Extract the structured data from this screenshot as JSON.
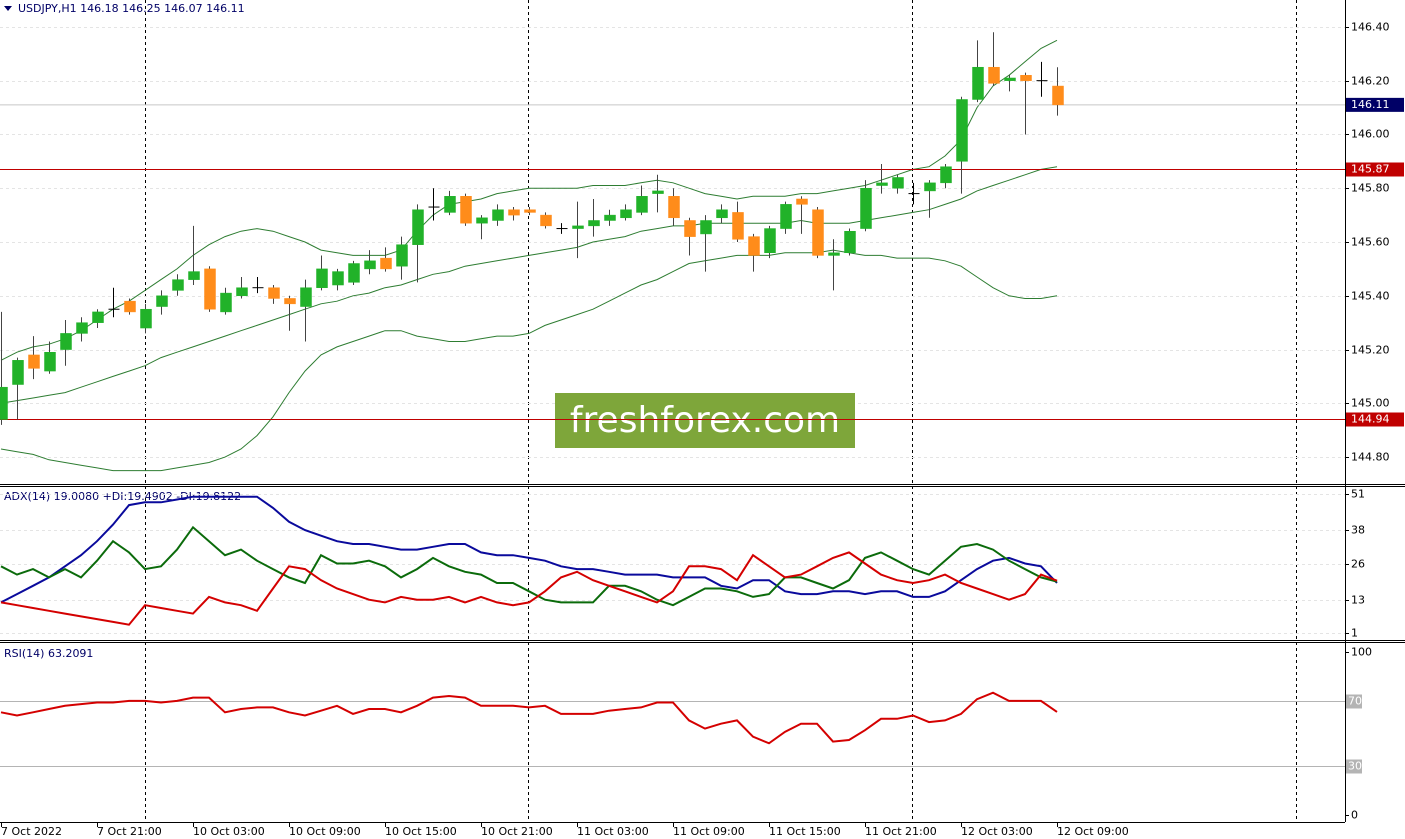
{
  "chart_data": [
    {
      "type": "candlestick",
      "title": "USDJPY,H1  146.18 146.25 146.07 146.11",
      "categories": [
        "7 Oct 2022",
        null,
        null,
        null,
        null,
        null,
        "7 Oct 21:00",
        null,
        null,
        null,
        null,
        null,
        "10 Oct 03:00",
        null,
        null,
        null,
        null,
        null,
        "10 Oct 09:00",
        null,
        null,
        null,
        null,
        null,
        "10 Oct 15:00",
        null,
        null,
        null,
        null,
        null,
        "10 Oct 21:00",
        null,
        null,
        null,
        null,
        null,
        "11 Oct 03:00",
        null,
        null,
        null,
        null,
        null,
        "11 Oct 09:00",
        null,
        null,
        null,
        null,
        null,
        "11 Oct 15:00",
        null,
        null,
        null,
        null,
        null,
        "11 Oct 21:00",
        null,
        null,
        null,
        null,
        null,
        "12 Oct 03:00",
        null,
        null,
        null,
        null,
        null,
        "12 Oct 09:00"
      ],
      "open": [
        144.94,
        145.07,
        145.18,
        145.12,
        145.2,
        145.26,
        145.3,
        145.35,
        145.38,
        145.28,
        145.36,
        145.42,
        145.46,
        145.5,
        145.34,
        145.4,
        145.43,
        145.43,
        145.39,
        145.36,
        145.43,
        145.44,
        145.45,
        145.5,
        145.54,
        145.51,
        145.59,
        145.73,
        145.71,
        145.77,
        145.67,
        145.68,
        145.72,
        145.72,
        145.7,
        145.65,
        145.65,
        145.66,
        145.68,
        145.69,
        145.71,
        145.78,
        145.77,
        145.68,
        145.63,
        145.69,
        145.71,
        145.62,
        145.56,
        145.65,
        145.76,
        145.72,
        145.55,
        145.56,
        145.65,
        145.81,
        145.8,
        145.78,
        145.79,
        145.82,
        145.9,
        146.13,
        146.25,
        146.2,
        146.22,
        146.2,
        146.18
      ],
      "high": [
        145.34,
        145.17,
        145.25,
        145.23,
        145.31,
        145.32,
        145.35,
        145.43,
        145.39,
        145.37,
        145.42,
        145.48,
        145.66,
        145.51,
        145.43,
        145.47,
        145.47,
        145.44,
        145.4,
        145.46,
        145.55,
        145.5,
        145.53,
        145.57,
        145.58,
        145.62,
        145.74,
        145.8,
        145.79,
        145.78,
        145.7,
        145.74,
        145.73,
        145.73,
        145.71,
        145.67,
        145.75,
        145.76,
        145.72,
        145.74,
        145.81,
        145.85,
        145.8,
        145.69,
        145.7,
        145.74,
        145.75,
        145.63,
        145.66,
        145.75,
        145.77,
        145.73,
        145.61,
        145.65,
        145.83,
        145.89,
        145.85,
        145.82,
        145.83,
        145.89,
        146.14,
        146.35,
        146.38,
        146.22,
        146.23,
        146.27,
        146.25
      ],
      "low": [
        144.92,
        144.94,
        145.09,
        145.11,
        145.14,
        145.23,
        145.28,
        145.32,
        145.33,
        145.26,
        145.33,
        145.4,
        145.44,
        145.34,
        145.33,
        145.39,
        145.41,
        145.37,
        145.27,
        145.23,
        145.42,
        145.42,
        145.44,
        145.48,
        145.49,
        145.46,
        145.45,
        145.68,
        145.7,
        145.66,
        145.61,
        145.66,
        145.68,
        145.7,
        145.65,
        145.63,
        145.54,
        145.62,
        145.66,
        145.68,
        145.7,
        145.71,
        145.66,
        145.55,
        145.49,
        145.67,
        145.6,
        145.49,
        145.54,
        145.63,
        145.63,
        145.54,
        145.42,
        145.55,
        145.64,
        145.78,
        145.78,
        145.74,
        145.69,
        145.8,
        145.78,
        146.12,
        146.18,
        146.16,
        146.0,
        146.14,
        146.07
      ],
      "close": [
        145.06,
        145.16,
        145.13,
        145.19,
        145.26,
        145.3,
        145.34,
        145.35,
        145.34,
        145.35,
        145.4,
        145.46,
        145.49,
        145.35,
        145.41,
        145.43,
        145.43,
        145.39,
        145.37,
        145.43,
        145.5,
        145.49,
        145.52,
        145.53,
        145.5,
        145.59,
        145.72,
        145.73,
        145.77,
        145.67,
        145.69,
        145.72,
        145.7,
        145.71,
        145.66,
        145.65,
        145.66,
        145.68,
        145.7,
        145.72,
        145.77,
        145.79,
        145.69,
        145.62,
        145.68,
        145.72,
        145.61,
        145.55,
        145.65,
        145.74,
        145.74,
        145.55,
        145.56,
        145.64,
        145.8,
        145.82,
        145.84,
        145.78,
        145.82,
        145.88,
        146.13,
        146.25,
        146.19,
        146.21,
        146.2,
        146.2,
        146.11
      ],
      "up_color": "#21b229",
      "down_color": "#ff8c1a",
      "doji_color": "#000000",
      "bands": [
        {
          "color": "#2e7d32",
          "values": [
            145.16,
            145.19,
            145.21,
            145.22,
            145.24,
            145.27,
            145.31,
            145.35,
            145.38,
            145.42,
            145.46,
            145.5,
            145.55,
            145.59,
            145.62,
            145.64,
            145.65,
            145.64,
            145.62,
            145.6,
            145.57,
            145.56,
            145.55,
            145.55,
            145.55,
            145.57,
            145.64,
            145.7,
            145.74,
            145.75,
            145.76,
            145.78,
            145.79,
            145.8,
            145.8,
            145.8,
            145.8,
            145.81,
            145.81,
            145.81,
            145.82,
            145.83,
            145.82,
            145.8,
            145.78,
            145.77,
            145.76,
            145.77,
            145.77,
            145.77,
            145.78,
            145.78,
            145.79,
            145.8,
            145.81,
            145.83,
            145.85,
            145.87,
            145.88,
            145.92,
            145.98,
            146.1,
            146.18,
            146.22,
            146.27,
            146.32,
            146.35
          ]
        },
        {
          "color": "#2e7d32",
          "values": [
            145.0,
            145.01,
            145.02,
            145.03,
            145.04,
            145.06,
            145.08,
            145.1,
            145.12,
            145.14,
            145.17,
            145.19,
            145.21,
            145.23,
            145.25,
            145.27,
            145.29,
            145.31,
            145.33,
            145.35,
            145.37,
            145.38,
            145.4,
            145.41,
            145.43,
            145.44,
            145.46,
            145.48,
            145.49,
            145.51,
            145.52,
            145.53,
            145.54,
            145.55,
            145.56,
            145.57,
            145.58,
            145.6,
            145.61,
            145.62,
            145.64,
            145.65,
            145.66,
            145.66,
            145.67,
            145.67,
            145.67,
            145.67,
            145.67,
            145.67,
            145.68,
            145.67,
            145.67,
            145.67,
            145.68,
            145.69,
            145.7,
            145.71,
            145.72,
            145.74,
            145.76,
            145.79,
            145.81,
            145.83,
            145.85,
            145.87,
            145.88
          ]
        },
        {
          "color": "#2e7d32",
          "values": [
            144.83,
            144.82,
            144.81,
            144.79,
            144.78,
            144.77,
            144.76,
            144.75,
            144.75,
            144.75,
            144.75,
            144.76,
            144.77,
            144.78,
            144.8,
            144.83,
            144.88,
            144.95,
            145.04,
            145.12,
            145.18,
            145.21,
            145.23,
            145.25,
            145.27,
            145.27,
            145.25,
            145.24,
            145.23,
            145.23,
            145.24,
            145.25,
            145.25,
            145.26,
            145.29,
            145.31,
            145.33,
            145.35,
            145.38,
            145.41,
            145.44,
            145.46,
            145.49,
            145.52,
            145.53,
            145.54,
            145.55,
            145.55,
            145.55,
            145.56,
            145.56,
            145.56,
            145.57,
            145.56,
            145.55,
            145.55,
            145.54,
            145.54,
            145.54,
            145.53,
            145.51,
            145.47,
            145.43,
            145.4,
            145.39,
            145.39,
            145.4
          ]
        }
      ],
      "ylim": [
        144.7,
        146.5
      ],
      "yticks": [
        {
          "value": 146.4,
          "label": "146.40"
        },
        {
          "value": 146.2,
          "label": "146.20"
        },
        {
          "value": 146.0,
          "label": "146.00"
        },
        {
          "value": 145.8,
          "label": "145.80"
        },
        {
          "value": 145.6,
          "label": "145.60"
        },
        {
          "value": 145.4,
          "label": "145.40"
        },
        {
          "value": 145.2,
          "label": "145.20"
        },
        {
          "value": 145.0,
          "label": "145.00"
        },
        {
          "value": 144.8,
          "label": "144.80"
        }
      ],
      "hlines": {
        "values": [
          145.87,
          144.94
        ],
        "color": "#c00000"
      },
      "last_price": 146.11,
      "last_price_color": "#000066",
      "watermark": "freshforex.com",
      "watermark_color": "#7ea63a",
      "grid": true
    },
    {
      "type": "line",
      "title": "ADX(14) 19.0080 +DI:19.4902 -DI:19.8122",
      "series": [
        {
          "color": "#0a0a9c",
          "values": [
            12,
            15,
            18,
            21,
            25,
            29,
            34,
            40,
            47,
            48,
            48,
            49,
            50,
            50,
            50,
            50,
            50,
            46,
            41,
            38,
            36,
            34,
            33,
            33,
            32,
            31,
            31,
            32,
            33,
            33,
            30,
            29,
            29,
            28,
            27,
            25,
            24,
            24,
            23,
            22,
            22,
            22,
            21,
            21,
            21,
            18,
            17,
            20,
            20,
            16,
            15,
            15,
            16,
            16,
            15,
            16,
            16,
            14,
            14,
            16,
            20,
            24,
            27,
            28,
            26,
            25,
            19.01
          ]
        },
        {
          "color": "#0b6b0b",
          "values": [
            25,
            22,
            24,
            21,
            24,
            21,
            27,
            34,
            30,
            24,
            25,
            31,
            39,
            34,
            29,
            31,
            27,
            24,
            21,
            19,
            29,
            26,
            26,
            27,
            25,
            21,
            24,
            28,
            25,
            23,
            22,
            19,
            19,
            16,
            13,
            12,
            12,
            12,
            18,
            18,
            16,
            13,
            11,
            14,
            17,
            17,
            16,
            14,
            15,
            21,
            21,
            19,
            17,
            20,
            28,
            30,
            27,
            24,
            22,
            27,
            32,
            33,
            31,
            27,
            24,
            21,
            19.49
          ]
        },
        {
          "color": "#d40000",
          "values": [
            12,
            11,
            10,
            9,
            8,
            7,
            6,
            5,
            4,
            11,
            10,
            9,
            8,
            14,
            12,
            11,
            9,
            17,
            25,
            24,
            20,
            17,
            15,
            13,
            12,
            14,
            13,
            13,
            14,
            12,
            14,
            12,
            11,
            12,
            16,
            21,
            23,
            20,
            18,
            16,
            14,
            12,
            16,
            25,
            25,
            24,
            20,
            29,
            25,
            21,
            22,
            25,
            28,
            30,
            26,
            22,
            20,
            19,
            20,
            22,
            19,
            17,
            15,
            13,
            15,
            22,
            19.81
          ]
        }
      ],
      "ylim": [
        -1.5,
        53.5
      ],
      "yticks": [
        51,
        38,
        26,
        13,
        1
      ],
      "grid": true
    },
    {
      "type": "line",
      "title": "RSI(14) 63.2091",
      "series": [
        {
          "color": "#d40000",
          "values": [
            63,
            61,
            63,
            65,
            67,
            68,
            69,
            69,
            70,
            70,
            69,
            70,
            72,
            72,
            63,
            65,
            66,
            66,
            63,
            61,
            64,
            67,
            62,
            65,
            65,
            63,
            67,
            72,
            73,
            72,
            67,
            67,
            67,
            66,
            67,
            62,
            62,
            62,
            64,
            65,
            66,
            69,
            69,
            58,
            53,
            56,
            58,
            48,
            44,
            51,
            56,
            56,
            45,
            46,
            52,
            59,
            59,
            61,
            57,
            58,
            62,
            71,
            75,
            70,
            70,
            70,
            63.21
          ]
        }
      ],
      "ylim": [
        -4.3,
        105.5
      ],
      "yticks": [
        100,
        0
      ],
      "levels": {
        "values": [
          70,
          30
        ],
        "color": "#b4b4b4"
      }
    }
  ]
}
